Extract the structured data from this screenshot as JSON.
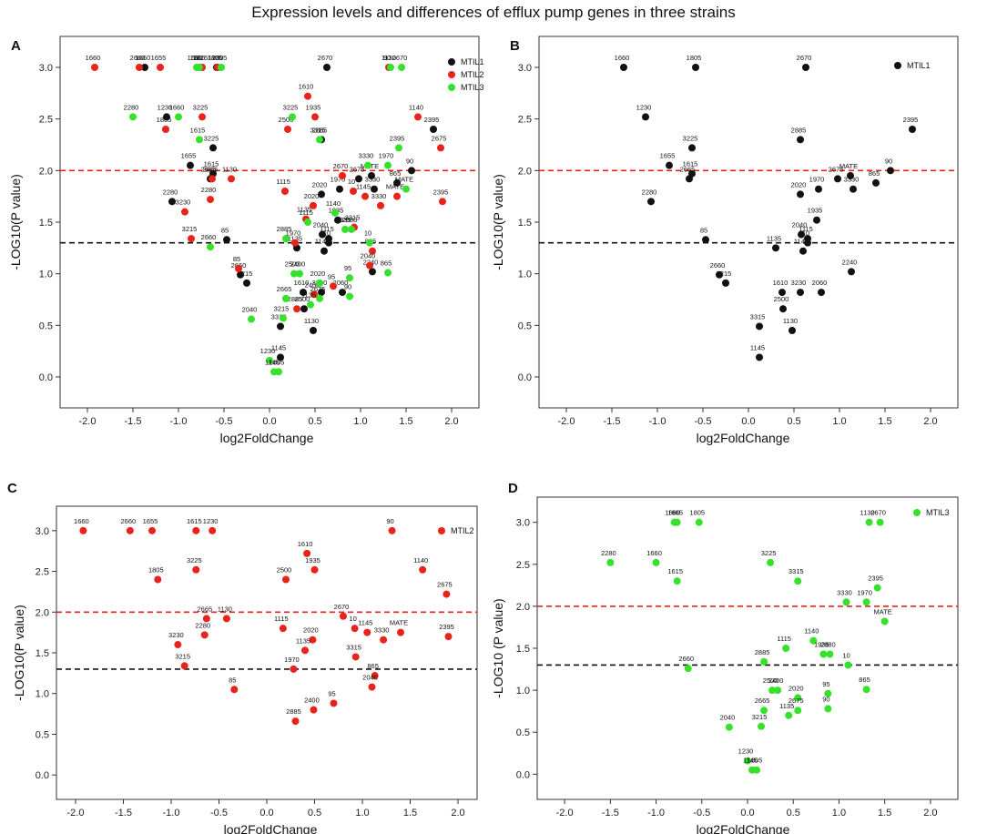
{
  "title": "Expression levels and differences of efflux pump genes in three strains",
  "colors": {
    "MTIL1": "#111111",
    "MTIL2": "#e8231b",
    "MTIL3": "#35e12a",
    "red_line": "#e8231b",
    "black_line": "#111111",
    "axis": "#333333"
  },
  "chart_data": [
    {
      "panel": "A",
      "type": "scatter",
      "xlabel": "log2FoldChange",
      "ylabel": "-LOG10(P value)",
      "xlim": [
        -2.3,
        2.3
      ],
      "ylim": [
        -0.3,
        3.3
      ],
      "xticks": [
        -2.0,
        -1.5,
        -1.0,
        -0.5,
        0.0,
        0.5,
        1.0,
        1.5,
        2.0
      ],
      "yticks": [
        0.0,
        0.5,
        1.0,
        1.5,
        2.0,
        2.5,
        3.0
      ],
      "thresholds": [
        {
          "y": 2.0,
          "color": "red"
        },
        {
          "y": 1.3,
          "color": "black"
        }
      ],
      "legend": [
        "MTIL1",
        "MTIL2",
        "MTIL3"
      ],
      "series": [
        {
          "name": "MTIL1",
          "points": [
            {
              "x": -1.37,
              "y": 3.0,
              "label": "1660"
            },
            {
              "x": -0.58,
              "y": 3.0,
              "label": "1805"
            },
            {
              "x": 0.63,
              "y": 3.0,
              "label": "2670"
            },
            {
              "x": -1.13,
              "y": 2.52,
              "label": "1230"
            },
            {
              "x": -0.62,
              "y": 2.22,
              "label": "3225"
            },
            {
              "x": 0.57,
              "y": 2.3,
              "label": "2885"
            },
            {
              "x": 1.8,
              "y": 2.4,
              "label": "2395"
            },
            {
              "x": -0.87,
              "y": 2.05,
              "label": "1655"
            },
            {
              "x": -0.62,
              "y": 1.97,
              "label": "1615"
            },
            {
              "x": -0.65,
              "y": 1.92,
              "label": "2665"
            },
            {
              "x": 1.56,
              "y": 2.0,
              "label": "90"
            },
            {
              "x": -1.07,
              "y": 1.7,
              "label": "2280"
            },
            {
              "x": 0.98,
              "y": 1.92,
              "label": "2675"
            },
            {
              "x": 1.12,
              "y": 1.95,
              "label": "MATE"
            },
            {
              "x": 0.77,
              "y": 1.82,
              "label": "1970"
            },
            {
              "x": 0.57,
              "y": 1.77,
              "label": "2020"
            },
            {
              "x": 1.4,
              "y": 1.88,
              "label": "865"
            },
            {
              "x": 1.15,
              "y": 1.82,
              "label": "3330"
            },
            {
              "x": 0.75,
              "y": 1.52,
              "label": "1935"
            },
            {
              "x": -0.47,
              "y": 1.33,
              "label": "85"
            },
            {
              "x": 0.58,
              "y": 1.38,
              "label": "2040"
            },
            {
              "x": 0.65,
              "y": 1.34,
              "label": "1115"
            },
            {
              "x": 0.65,
              "y": 1.3,
              "label": "10"
            },
            {
              "x": 0.6,
              "y": 1.22,
              "label": "1140"
            },
            {
              "x": 0.3,
              "y": 1.25,
              "label": "1135"
            },
            {
              "x": -0.32,
              "y": 0.99,
              "label": "2660"
            },
            {
              "x": -0.25,
              "y": 0.91,
              "label": "3215"
            },
            {
              "x": 0.37,
              "y": 0.82,
              "label": "1610"
            },
            {
              "x": 0.57,
              "y": 0.82,
              "label": "3230"
            },
            {
              "x": 0.8,
              "y": 0.82,
              "label": "2060"
            },
            {
              "x": 1.13,
              "y": 1.02,
              "label": "2240"
            },
            {
              "x": 0.38,
              "y": 0.66,
              "label": "2500"
            },
            {
              "x": 0.12,
              "y": 0.49,
              "label": "3315"
            },
            {
              "x": 0.48,
              "y": 0.45,
              "label": "1130"
            },
            {
              "x": 0.12,
              "y": 0.19,
              "label": "1145"
            }
          ]
        },
        {
          "name": "MTIL2",
          "points": [
            {
              "x": -1.92,
              "y": 3.0,
              "label": "1660"
            },
            {
              "x": -1.43,
              "y": 3.0,
              "label": "2660"
            },
            {
              "x": -1.2,
              "y": 3.0,
              "label": "1655"
            },
            {
              "x": -0.74,
              "y": 3.0,
              "label": "1615"
            },
            {
              "x": -0.57,
              "y": 3.0,
              "label": "1230"
            },
            {
              "x": 1.31,
              "y": 3.0,
              "label": "90"
            },
            {
              "x": 0.42,
              "y": 2.72,
              "label": "1610"
            },
            {
              "x": -0.74,
              "y": 2.52,
              "label": "3225"
            },
            {
              "x": 0.5,
              "y": 2.52,
              "label": "1935"
            },
            {
              "x": 1.63,
              "y": 2.52,
              "label": "1140"
            },
            {
              "x": -1.14,
              "y": 2.4,
              "label": "1805"
            },
            {
              "x": 0.2,
              "y": 2.4,
              "label": "2500"
            },
            {
              "x": 1.88,
              "y": 2.22,
              "label": "2675"
            },
            {
              "x": -0.63,
              "y": 1.92,
              "label": "2665"
            },
            {
              "x": -0.42,
              "y": 1.92,
              "label": "1130"
            },
            {
              "x": 0.8,
              "y": 1.95,
              "label": "2670"
            },
            {
              "x": -0.65,
              "y": 1.72,
              "label": "2280"
            },
            {
              "x": 0.17,
              "y": 1.8,
              "label": "1115"
            },
            {
              "x": 0.48,
              "y": 1.66,
              "label": "2020"
            },
            {
              "x": 0.92,
              "y": 1.8,
              "label": "10"
            },
            {
              "x": 1.05,
              "y": 1.75,
              "label": "1145"
            },
            {
              "x": 1.22,
              "y": 1.66,
              "label": "3330"
            },
            {
              "x": 1.4,
              "y": 1.75,
              "label": "MATE"
            },
            {
              "x": 1.9,
              "y": 1.7,
              "label": "2395"
            },
            {
              "x": -0.93,
              "y": 1.6,
              "label": "3230"
            },
            {
              "x": 0.4,
              "y": 1.53,
              "label": "1135"
            },
            {
              "x": 0.93,
              "y": 1.45,
              "label": "3315"
            },
            {
              "x": -0.86,
              "y": 1.34,
              "label": "3215"
            },
            {
              "x": 0.28,
              "y": 1.3,
              "label": "1970"
            },
            {
              "x": 1.13,
              "y": 1.22,
              "label": "865"
            },
            {
              "x": 1.1,
              "y": 1.08,
              "label": "2040"
            },
            {
              "x": -0.34,
              "y": 1.05,
              "label": "85"
            },
            {
              "x": 0.7,
              "y": 0.88,
              "label": "95"
            },
            {
              "x": 0.49,
              "y": 0.8,
              "label": "2400"
            },
            {
              "x": 0.3,
              "y": 0.66,
              "label": "2885"
            }
          ]
        },
        {
          "name": "MTIL3",
          "points": [
            {
              "x": -0.8,
              "y": 3.0,
              "label": "1660"
            },
            {
              "x": -0.77,
              "y": 3.0,
              "label": "1665"
            },
            {
              "x": -0.53,
              "y": 3.0,
              "label": "1805"
            },
            {
              "x": 1.33,
              "y": 3.0,
              "label": "1130"
            },
            {
              "x": 1.45,
              "y": 3.0,
              "label": "2670"
            },
            {
              "x": -1.5,
              "y": 2.52,
              "label": "2280"
            },
            {
              "x": -1.0,
              "y": 2.52,
              "label": "1660"
            },
            {
              "x": 0.25,
              "y": 2.52,
              "label": "3225"
            },
            {
              "x": -0.77,
              "y": 2.3,
              "label": "1615"
            },
            {
              "x": 0.55,
              "y": 2.3,
              "label": "3315"
            },
            {
              "x": 1.42,
              "y": 2.22,
              "label": "2395"
            },
            {
              "x": 1.08,
              "y": 2.05,
              "label": "3330"
            },
            {
              "x": 1.3,
              "y": 2.05,
              "label": "1970"
            },
            {
              "x": 1.5,
              "y": 1.82,
              "label": "MATE"
            },
            {
              "x": 0.72,
              "y": 1.59,
              "label": "1140"
            },
            {
              "x": 0.42,
              "y": 1.5,
              "label": "1115"
            },
            {
              "x": 0.83,
              "y": 1.43,
              "label": "1935"
            },
            {
              "x": 0.9,
              "y": 1.43,
              "label": "2880"
            },
            {
              "x": 1.1,
              "y": 1.3,
              "label": "10"
            },
            {
              "x": -0.65,
              "y": 1.26,
              "label": "2660"
            },
            {
              "x": 0.18,
              "y": 1.34,
              "label": "2885"
            },
            {
              "x": 0.27,
              "y": 1.0,
              "label": "2500"
            },
            {
              "x": 0.33,
              "y": 1.0,
              "label": "2400"
            },
            {
              "x": 0.55,
              "y": 0.91,
              "label": "2020"
            },
            {
              "x": 0.88,
              "y": 0.96,
              "label": "95"
            },
            {
              "x": 1.3,
              "y": 1.01,
              "label": "865"
            },
            {
              "x": 0.88,
              "y": 0.78,
              "label": "90"
            },
            {
              "x": 0.18,
              "y": 0.76,
              "label": "2665"
            },
            {
              "x": 0.55,
              "y": 0.76,
              "label": "2675"
            },
            {
              "x": 0.45,
              "y": 0.7,
              "label": "1135"
            },
            {
              "x": 0.15,
              "y": 0.57,
              "label": "3215"
            },
            {
              "x": -0.2,
              "y": 0.56,
              "label": "2040"
            },
            {
              "x": 0.0,
              "y": 0.16,
              "label": "1230"
            },
            {
              "x": 0.05,
              "y": 0.05,
              "label": "1145"
            },
            {
              "x": 0.1,
              "y": 0.05,
              "label": "1805"
            }
          ]
        }
      ]
    },
    {
      "panel": "B",
      "type": "scatter",
      "xlabel": "log2FoldChange",
      "ylabel": "-LOG10(P value)",
      "xlim": [
        -2.3,
        2.3
      ],
      "ylim": [
        -0.3,
        3.3
      ],
      "xticks": [
        -2.0,
        -1.5,
        -1.0,
        -0.5,
        0.0,
        0.5,
        1.0,
        1.5,
        2.0
      ],
      "yticks": [
        0.0,
        0.5,
        1.0,
        1.5,
        2.0,
        2.5,
        3.0
      ],
      "thresholds": [
        {
          "y": 2.0,
          "color": "red"
        },
        {
          "y": 1.3,
          "color": "black"
        }
      ],
      "legend": [
        "MTIL1"
      ],
      "series_ref": [
        "MTIL1"
      ]
    },
    {
      "panel": "C",
      "type": "scatter",
      "xlabel": "log2FoldChange",
      "ylabel": "-LOG10(P value)",
      "xlim": [
        -2.2,
        2.2
      ],
      "ylim": [
        -0.3,
        3.3
      ],
      "xticks": [
        -2.0,
        -1.5,
        -1.0,
        -0.5,
        0.0,
        0.5,
        1.0,
        1.5,
        2.0
      ],
      "yticks": [
        0.0,
        0.5,
        1.0,
        1.5,
        2.0,
        2.5,
        3.0
      ],
      "thresholds": [
        {
          "y": 2.0,
          "color": "red"
        },
        {
          "y": 1.3,
          "color": "black"
        }
      ],
      "legend": [
        "MTIL2"
      ],
      "series_ref": [
        "MTIL2"
      ]
    },
    {
      "panel": "D",
      "type": "scatter",
      "xlabel": "log2FoldChange",
      "ylabel": "-LOG10 (P value)",
      "xlim": [
        -2.3,
        2.3
      ],
      "ylim": [
        -0.3,
        3.3
      ],
      "xticks": [
        -2.0,
        -1.5,
        -1.0,
        -0.5,
        0.0,
        0.5,
        1.0,
        1.5,
        2.0
      ],
      "yticks": [
        0.0,
        0.5,
        1.0,
        1.5,
        2.0,
        2.5,
        3.0
      ],
      "thresholds": [
        {
          "y": 2.0,
          "color": "red"
        },
        {
          "y": 1.3,
          "color": "black"
        }
      ],
      "legend": [
        "MTIL3"
      ],
      "series_ref": [
        "MTIL3"
      ]
    }
  ]
}
